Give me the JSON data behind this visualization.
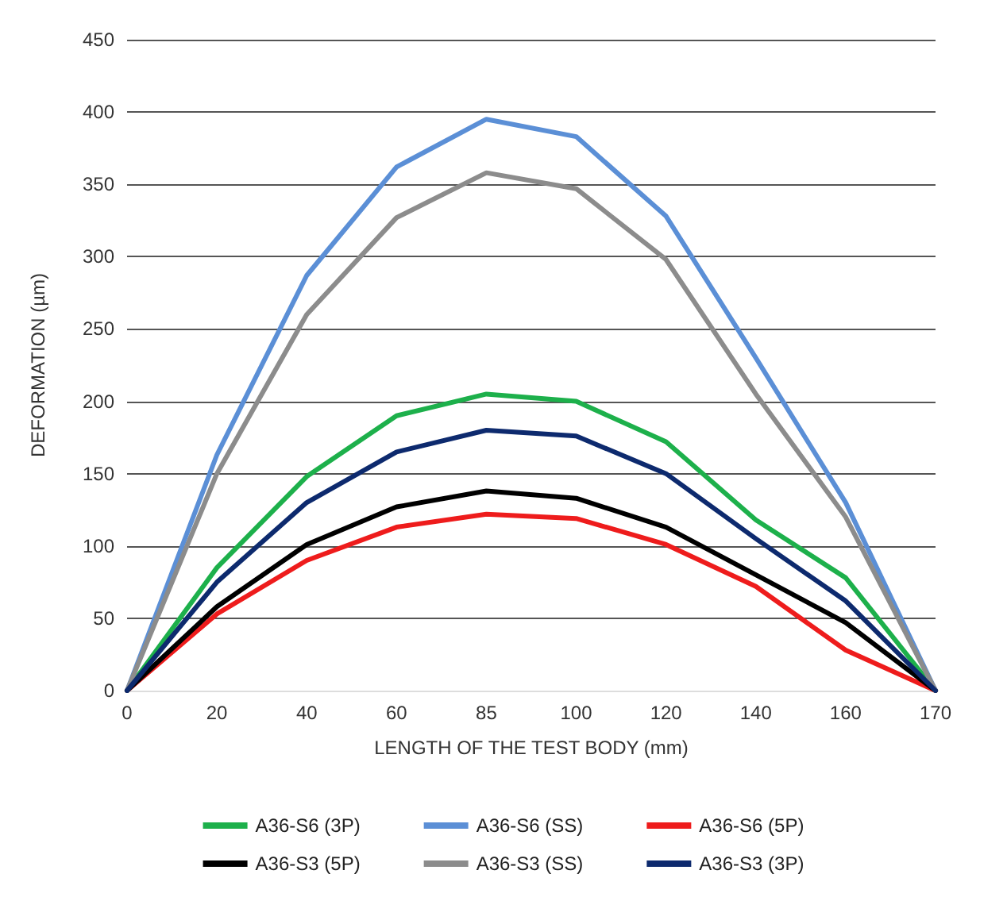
{
  "chart_data": {
    "type": "line",
    "xlabel": "LENGTH OF THE TEST BODY (mm)",
    "ylabel": "DEFORMATION (µm)",
    "categories": [
      "0",
      "20",
      "40",
      "60",
      "85",
      "100",
      "120",
      "140",
      "160",
      "170"
    ],
    "series": [
      {
        "name": "A36-S6 (3P)",
        "color": "#1db04b",
        "values": [
          0,
          85,
          148,
          190,
          205,
          200,
          172,
          118,
          78,
          0
        ]
      },
      {
        "name": "A36-S6 (SS)",
        "color": "#5b8fd6",
        "values": [
          0,
          163,
          287,
          362,
          395,
          383,
          328,
          230,
          130,
          0
        ]
      },
      {
        "name": "A36-S6 (5P)",
        "color": "#ee1c1c",
        "values": [
          0,
          53,
          90,
          113,
          122,
          119,
          101,
          72,
          28,
          0
        ]
      },
      {
        "name": "A36-S3 (5P)",
        "color": "#000000",
        "values": [
          0,
          58,
          101,
          127,
          138,
          133,
          113,
          80,
          47,
          0
        ]
      },
      {
        "name": "A36-S3 (SS)",
        "color": "#8c8c8c",
        "values": [
          0,
          150,
          260,
          327,
          358,
          347,
          298,
          205,
          120,
          0
        ]
      },
      {
        "name": "A36-S3 (3P)",
        "color": "#0d2a6e",
        "values": [
          0,
          75,
          130,
          165,
          180,
          176,
          150,
          105,
          62,
          0
        ]
      }
    ],
    "ylim": [
      0,
      450
    ],
    "yticks": [
      0,
      50,
      100,
      150,
      200,
      250,
      300,
      350,
      400,
      450
    ],
    "grid": "y",
    "legend": "bottom",
    "marker": "none",
    "line_style": "solid"
  }
}
